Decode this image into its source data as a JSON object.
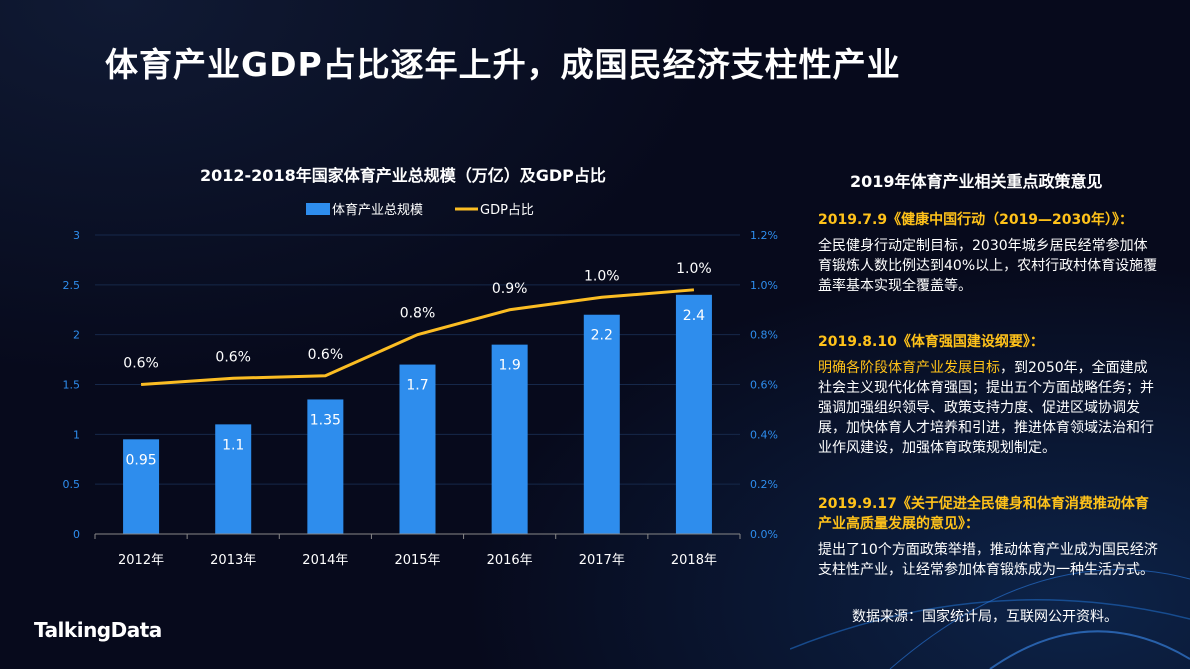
{
  "slide": {
    "title": "体育产业GDP占比逐年上升，成国民经济支柱性产业",
    "logo": "TalkingData",
    "source": "数据来源：国家统计局，互联网公开资料。"
  },
  "chart_data": {
    "type": "bar+line",
    "title": "2012-2018年国家体育产业总规模（万亿）及GDP占比",
    "categories": [
      "2012年",
      "2013年",
      "2014年",
      "2015年",
      "2016年",
      "2017年",
      "2018年"
    ],
    "series": [
      {
        "name": "体育产业总规模",
        "type": "bar",
        "axis": "left",
        "values": [
          0.95,
          1.1,
          1.35,
          1.7,
          1.9,
          2.2,
          2.4
        ],
        "labels": [
          "0.95",
          "1.1",
          "1.35",
          "1.7",
          "1.9",
          "2.2",
          "2.4"
        ],
        "color": "#2e8ded"
      },
      {
        "name": "GDP占比",
        "type": "line",
        "axis": "right",
        "values": [
          0.6,
          0.625,
          0.635,
          0.8,
          0.9,
          0.95,
          0.98
        ],
        "labels": [
          "0.6%",
          "0.6%",
          "0.6%",
          "0.8%",
          "0.9%",
          "1.0%",
          "1.0%"
        ],
        "color": "#fbbd23"
      }
    ],
    "y_left": {
      "range": [
        0,
        3
      ],
      "ticks": [
        "0",
        "0.5",
        "1",
        "1.5",
        "2",
        "2.5",
        "3"
      ]
    },
    "y_right": {
      "range": [
        0,
        1.2
      ],
      "ticks": [
        "0.0%",
        "0.2%",
        "0.4%",
        "0.6%",
        "0.8%",
        "1.0%",
        "1.2%"
      ]
    },
    "legend": "top",
    "grid": true
  },
  "panel": {
    "title": "2019年体育产业相关重点政策意见",
    "items": [
      {
        "heading": "2019.7.9《健康中国行动（2019—2030年）》：",
        "highlight": "",
        "body": "全民健身行动定制目标，2030年城乡居民经常参加体育锻炼人数比例达到40%以上，农村行政村体育设施覆盖率基本实现全覆盖等。"
      },
      {
        "heading": "2019.8.10《体育强国建设纲要》：",
        "highlight": "明确各阶段体育产业发展目标",
        "body": "，到2050年，全面建成社会主义现代化体育强国；提出五个方面战略任务；并强调加强组织领导、政策支持力度、促进区域协调发展，加快体育人才培养和引进，推进体育领域法治和行业作风建设，加强体育政策规划制定。"
      },
      {
        "heading": "2019.9.17《关于促进全民健身和体育消费推动体育产业高质量发展的意见》：",
        "highlight": "",
        "body": "提出了10个方面政策举措，推动体育产业成为国民经济支柱性产业，让经常参加体育锻炼成为一种生活方式。"
      }
    ]
  }
}
